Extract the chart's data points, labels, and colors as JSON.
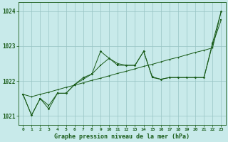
{
  "x": [
    0,
    1,
    2,
    3,
    4,
    5,
    6,
    7,
    8,
    9,
    10,
    11,
    12,
    13,
    14,
    15,
    16,
    17,
    18,
    19,
    20,
    21,
    22,
    23
  ],
  "line_smooth": [
    1021.62,
    1021.55,
    1021.62,
    1021.68,
    1021.75,
    1021.82,
    1021.88,
    1021.95,
    1022.02,
    1022.08,
    1022.15,
    1022.22,
    1022.28,
    1022.35,
    1022.42,
    1022.48,
    1022.55,
    1022.62,
    1022.68,
    1022.75,
    1022.82,
    1022.88,
    1022.95,
    1024.0
  ],
  "line_mid": [
    1021.62,
    1021.02,
    1021.5,
    1021.3,
    1021.65,
    1021.65,
    1021.9,
    1022.05,
    1022.2,
    1022.45,
    1022.65,
    1022.45,
    1022.45,
    1022.45,
    1022.85,
    1022.1,
    1022.05,
    1022.1,
    1022.1,
    1022.1,
    1022.1,
    1022.1,
    1023.05,
    1023.75
  ],
  "line_top": [
    1021.62,
    1021.02,
    1021.5,
    1021.2,
    1021.65,
    1021.65,
    1021.9,
    1022.1,
    1022.2,
    1022.85,
    1022.65,
    1022.5,
    1022.45,
    1022.45,
    1022.85,
    1022.12,
    1022.05,
    1022.1,
    1022.1,
    1022.1,
    1022.1,
    1022.1,
    1023.1,
    1024.0
  ],
  "bg_color": "#c8eaea",
  "grid_color": "#98c4c4",
  "line_color": "#1a5c1a",
  "ylim": [
    1020.75,
    1024.25
  ],
  "yticks": [
    1021,
    1022,
    1023,
    1024
  ],
  "xticks": [
    0,
    1,
    2,
    3,
    4,
    5,
    6,
    7,
    8,
    9,
    10,
    11,
    12,
    13,
    14,
    15,
    16,
    17,
    18,
    19,
    20,
    21,
    22,
    23
  ],
  "xlabel": "Graphe pression niveau de la mer (hPa)",
  "line_width": 0.7,
  "marker_size": 1.8
}
